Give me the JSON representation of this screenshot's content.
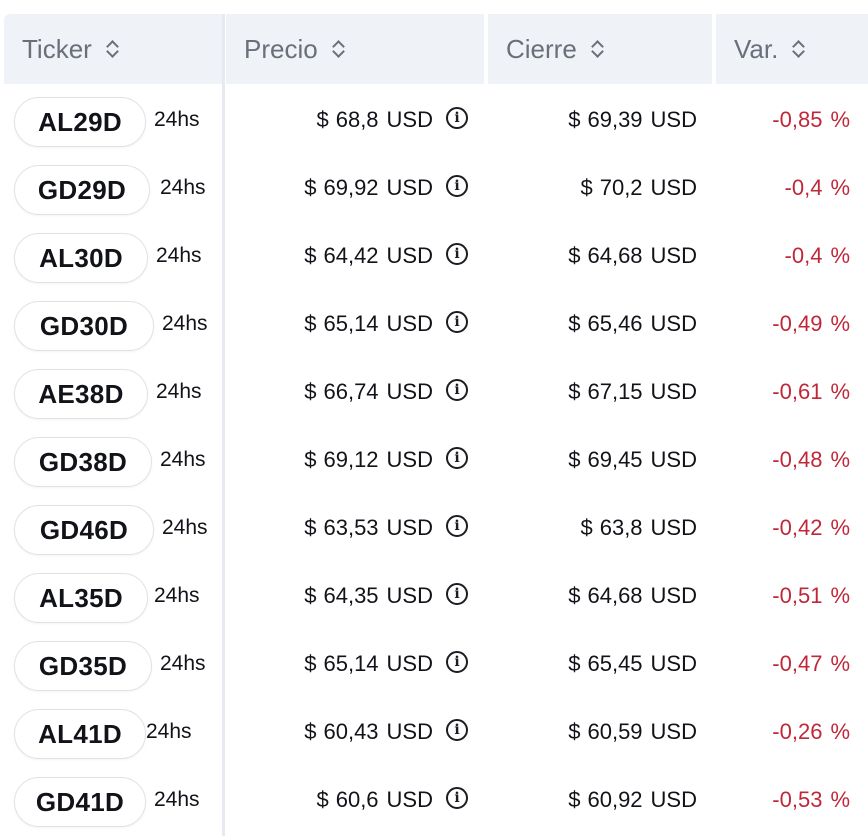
{
  "header": {
    "ticker_label": "Ticker",
    "precio_label": "Precio",
    "cierre_label": "Cierre",
    "var_label": "Var."
  },
  "colors": {
    "negative": "#c0283a",
    "header_bg": "#eff2f7"
  },
  "rows": [
    {
      "ticker": "AL29D",
      "term": "24hs",
      "currency_symbol": "$",
      "price": "68,8",
      "price_unit": "USD",
      "close": "69,39",
      "close_unit": "USD",
      "var": "-0,85",
      "pct": "%"
    },
    {
      "ticker": "GD29D",
      "term": "24hs",
      "currency_symbol": "$",
      "price": "69,92",
      "price_unit": "USD",
      "close": "70,2",
      "close_unit": "USD",
      "var": "-0,4",
      "pct": "%"
    },
    {
      "ticker": "AL30D",
      "term": "24hs",
      "currency_symbol": "$",
      "price": "64,42",
      "price_unit": "USD",
      "close": "64,68",
      "close_unit": "USD",
      "var": "-0,4",
      "pct": "%"
    },
    {
      "ticker": "GD30D",
      "term": "24hs",
      "currency_symbol": "$",
      "price": "65,14",
      "price_unit": "USD",
      "close": "65,46",
      "close_unit": "USD",
      "var": "-0,49",
      "pct": "%"
    },
    {
      "ticker": "AE38D",
      "term": "24hs",
      "currency_symbol": "$",
      "price": "66,74",
      "price_unit": "USD",
      "close": "67,15",
      "close_unit": "USD",
      "var": "-0,61",
      "pct": "%"
    },
    {
      "ticker": "GD38D",
      "term": "24hs",
      "currency_symbol": "$",
      "price": "69,12",
      "price_unit": "USD",
      "close": "69,45",
      "close_unit": "USD",
      "var": "-0,48",
      "pct": "%"
    },
    {
      "ticker": "GD46D",
      "term": "24hs",
      "currency_symbol": "$",
      "price": "63,53",
      "price_unit": "USD",
      "close": "63,8",
      "close_unit": "USD",
      "var": "-0,42",
      "pct": "%"
    },
    {
      "ticker": "AL35D",
      "term": "24hs",
      "currency_symbol": "$",
      "price": "64,35",
      "price_unit": "USD",
      "close": "64,68",
      "close_unit": "USD",
      "var": "-0,51",
      "pct": "%"
    },
    {
      "ticker": "GD35D",
      "term": "24hs",
      "currency_symbol": "$",
      "price": "65,14",
      "price_unit": "USD",
      "close": "65,45",
      "close_unit": "USD",
      "var": "-0,47",
      "pct": "%"
    },
    {
      "ticker": "AL41D",
      "term": "24hs",
      "currency_symbol": "$",
      "price": "60,43",
      "price_unit": "USD",
      "close": "60,59",
      "close_unit": "USD",
      "var": "-0,26",
      "pct": "%"
    },
    {
      "ticker": "GD41D",
      "term": "24hs",
      "currency_symbol": "$",
      "price": "60,6",
      "price_unit": "USD",
      "close": "60,92",
      "close_unit": "USD",
      "var": "-0,53",
      "pct": "%"
    }
  ],
  "icons": {
    "sort": "sort-icon",
    "info": "info-icon",
    "info_glyph": "i"
  }
}
